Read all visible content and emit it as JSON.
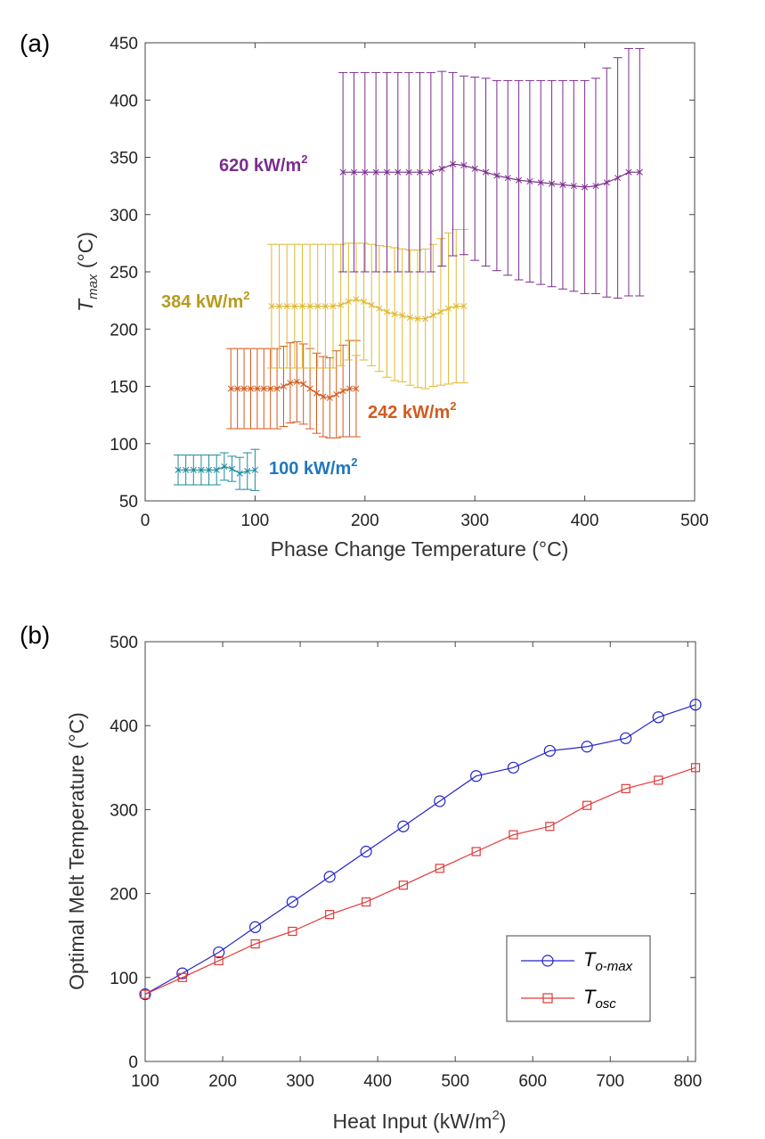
{
  "chart_data": [
    {
      "panel_label": "(a)",
      "type": "line",
      "title": "",
      "xlabel": "Phase Change Temperature (°C)",
      "ylabel_main": "T",
      "ylabel_sub": "max",
      "ylabel_unit": " (°C)",
      "xlim": [
        0,
        500
      ],
      "ylim": [
        50,
        450
      ],
      "xticks": [
        0,
        100,
        200,
        300,
        400,
        500
      ],
      "yticks": [
        50,
        100,
        150,
        200,
        250,
        300,
        350,
        400,
        450
      ],
      "grid": false,
      "series": [
        {
          "name": "100 kW/m",
          "name_sup": "2",
          "color": "#1f8a9c",
          "x": [
            30,
            37,
            44,
            51,
            58,
            65,
            72,
            79,
            86,
            93,
            100
          ],
          "y": [
            77,
            77,
            77,
            77,
            77,
            77,
            80,
            78,
            74,
            76,
            77
          ],
          "err": [
            13,
            13,
            13,
            13,
            13,
            13,
            12,
            11,
            14,
            16,
            18
          ]
        },
        {
          "name": "242 kW/m",
          "name_sup": "2",
          "color": "#d45a1d",
          "x": [
            78,
            84,
            90,
            96,
            102,
            108,
            114,
            120,
            126,
            132,
            138,
            144,
            150,
            156,
            162,
            168,
            174,
            180,
            186,
            192
          ],
          "y": [
            148,
            148,
            148,
            148,
            148,
            148,
            148,
            148,
            150,
            153,
            154,
            152,
            148,
            144,
            141,
            140,
            143,
            146,
            148,
            148
          ],
          "err": [
            35,
            35,
            35,
            35,
            35,
            35,
            35,
            35,
            35,
            35,
            35,
            35,
            35,
            35,
            35,
            35,
            38,
            40,
            42,
            42
          ]
        },
        {
          "name": "384 kW/m",
          "name_sup": "2",
          "color": "#e0b830",
          "x": [
            115,
            122,
            129,
            136,
            143,
            150,
            157,
            164,
            171,
            178,
            185,
            192,
            199,
            206,
            213,
            220,
            227,
            234,
            241,
            248,
            255,
            262,
            269,
            276,
            283,
            290
          ],
          "y": [
            220,
            220,
            220,
            220,
            220,
            220,
            220,
            220,
            220,
            221,
            224,
            226,
            224,
            221,
            218,
            215,
            213,
            212,
            210,
            209,
            209,
            212,
            215,
            218,
            220,
            220
          ],
          "err": [
            54,
            54,
            54,
            54,
            54,
            54,
            54,
            54,
            54,
            53,
            51,
            49,
            51,
            53,
            55,
            57,
            58,
            58,
            59,
            60,
            61,
            62,
            64,
            66,
            67,
            67
          ]
        },
        {
          "name": "620 kW/m",
          "name_sup": "2",
          "color": "#7a2e8c",
          "x": [
            180,
            190,
            200,
            210,
            220,
            230,
            240,
            250,
            260,
            270,
            280,
            290,
            300,
            310,
            320,
            330,
            340,
            350,
            360,
            370,
            380,
            390,
            400,
            410,
            420,
            430,
            440,
            450
          ],
          "y": [
            337,
            337,
            337,
            337,
            337,
            337,
            337,
            337,
            337,
            340,
            344,
            343,
            340,
            337,
            334,
            332,
            330,
            329,
            328,
            327,
            326,
            325,
            324,
            325,
            328,
            332,
            337,
            337
          ],
          "err": [
            87,
            87,
            87,
            87,
            87,
            87,
            87,
            87,
            87,
            85,
            80,
            78,
            80,
            82,
            83,
            85,
            87,
            88,
            89,
            90,
            91,
            92,
            93,
            94,
            100,
            105,
            108,
            108
          ]
        }
      ]
    },
    {
      "panel_label": "(b)",
      "type": "line",
      "title": "",
      "xlabel_main": "Heat Input (kW/m",
      "xlabel_sup": "2",
      "xlabel_end": ")",
      "ylabel": "Optimal Melt Temperature (°C)",
      "xlim": [
        100,
        810
      ],
      "ylim": [
        0,
        500
      ],
      "xticks": [
        100,
        200,
        300,
        400,
        500,
        600,
        700,
        800
      ],
      "yticks": [
        0,
        100,
        200,
        300,
        400,
        500
      ],
      "grid": false,
      "legend_position": "bottom-right",
      "series": [
        {
          "name_main": "T",
          "name_sub": "o-max",
          "color": "#2424c8",
          "marker": "circle",
          "x": [
            100,
            148,
            195,
            242,
            290,
            338,
            385,
            433,
            480,
            527,
            575,
            622,
            670,
            720,
            762,
            810
          ],
          "y": [
            80,
            105,
            130,
            160,
            190,
            220,
            250,
            280,
            310,
            340,
            350,
            370,
            375,
            385,
            410,
            425
          ]
        },
        {
          "name_main": "T",
          "name_sub": "osc",
          "color": "#e03a3a",
          "marker": "square",
          "x": [
            100,
            148,
            195,
            242,
            290,
            338,
            385,
            433,
            480,
            527,
            575,
            622,
            670,
            720,
            762,
            810
          ],
          "y": [
            80,
            100,
            120,
            140,
            155,
            175,
            190,
            210,
            230,
            250,
            270,
            280,
            305,
            325,
            335,
            350
          ]
        }
      ]
    }
  ]
}
